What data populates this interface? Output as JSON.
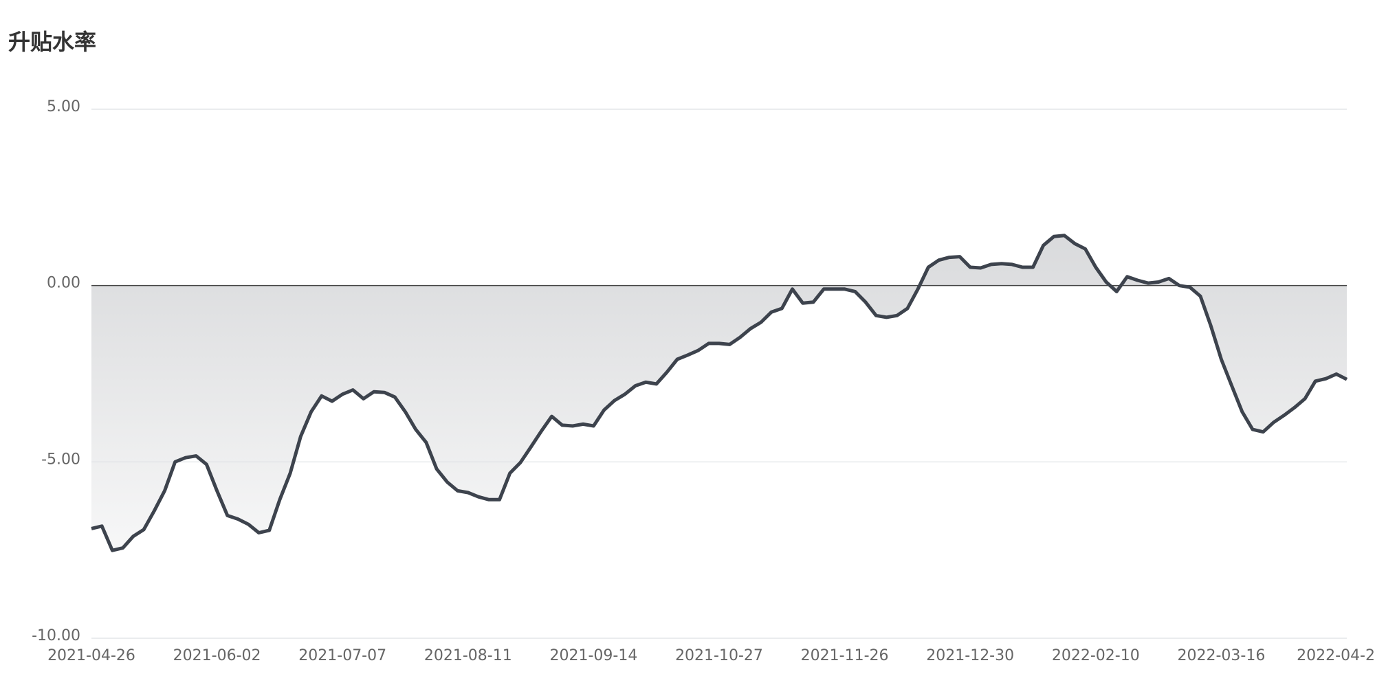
{
  "chart_data": {
    "type": "area",
    "title": "升贴水率",
    "categories": [
      "2021-04-26",
      null,
      null,
      null,
      null,
      null,
      null,
      null,
      null,
      null,
      null,
      null,
      "2021-06-02",
      null,
      null,
      null,
      null,
      null,
      null,
      null,
      null,
      null,
      null,
      null,
      "2021-07-07",
      null,
      null,
      null,
      null,
      null,
      null,
      null,
      null,
      null,
      null,
      null,
      "2021-08-11",
      null,
      null,
      null,
      null,
      null,
      null,
      null,
      null,
      null,
      null,
      null,
      "2021-09-14",
      null,
      null,
      null,
      null,
      null,
      null,
      null,
      null,
      null,
      null,
      null,
      "2021-10-27",
      null,
      null,
      null,
      null,
      null,
      null,
      null,
      null,
      null,
      null,
      null,
      "2021-11-26",
      null,
      null,
      null,
      null,
      null,
      null,
      null,
      null,
      null,
      null,
      null,
      "2021-12-30",
      null,
      null,
      null,
      null,
      null,
      null,
      null,
      null,
      null,
      null,
      null,
      "2022-02-10",
      null,
      null,
      null,
      null,
      null,
      null,
      null,
      null,
      null,
      null,
      null,
      "2022-03-16",
      null,
      null,
      null,
      null,
      null,
      null,
      null,
      null,
      null,
      null,
      null,
      "2022-04-2"
    ],
    "values": [
      -6.89,
      -6.82,
      -7.51,
      -7.44,
      -7.11,
      -6.92,
      -6.39,
      -5.82,
      -5.0,
      -4.88,
      -4.83,
      -5.07,
      -5.82,
      -6.52,
      -6.62,
      -6.77,
      -7.01,
      -6.94,
      -6.07,
      -5.32,
      -4.28,
      -3.58,
      -3.13,
      -3.28,
      -3.08,
      -2.96,
      -3.21,
      -3.01,
      -3.03,
      -3.16,
      -3.58,
      -4.08,
      -4.45,
      -5.2,
      -5.57,
      -5.82,
      -5.87,
      -5.99,
      -6.07,
      -6.07,
      -5.32,
      -5.02,
      -4.58,
      -4.13,
      -3.71,
      -3.96,
      -3.98,
      -3.93,
      -3.98,
      -3.53,
      -3.26,
      -3.08,
      -2.84,
      -2.74,
      -2.79,
      -2.46,
      -2.09,
      -1.97,
      -1.84,
      -1.64,
      -1.64,
      -1.67,
      -1.47,
      -1.22,
      -1.04,
      -0.75,
      -0.65,
      -0.1,
      -0.5,
      -0.47,
      -0.1,
      -0.1,
      -0.1,
      -0.17,
      -0.47,
      -0.85,
      -0.9,
      -0.85,
      -0.65,
      -0.1,
      0.52,
      0.72,
      0.8,
      0.82,
      0.52,
      0.5,
      0.6,
      0.62,
      0.6,
      0.52,
      0.52,
      1.14,
      1.39,
      1.42,
      1.19,
      1.04,
      0.52,
      0.1,
      -0.17,
      0.25,
      0.15,
      0.07,
      0.1,
      0.2,
      0.0,
      -0.05,
      -0.3,
      -1.14,
      -2.09,
      -2.84,
      -3.58,
      -4.08,
      -4.15,
      -3.88,
      -3.68,
      -3.46,
      -3.21,
      -2.71,
      -2.64,
      -2.51,
      -2.66
    ],
    "color": "#3d434d",
    "ylim": [
      -10,
      5
    ],
    "yticks": [
      {
        "value": -10,
        "label": "-10.00"
      },
      {
        "value": -5,
        "label": "-5.00"
      },
      {
        "value": 0,
        "label": "0.00"
      },
      {
        "value": 5,
        "label": "5.00"
      }
    ],
    "grid": true
  }
}
